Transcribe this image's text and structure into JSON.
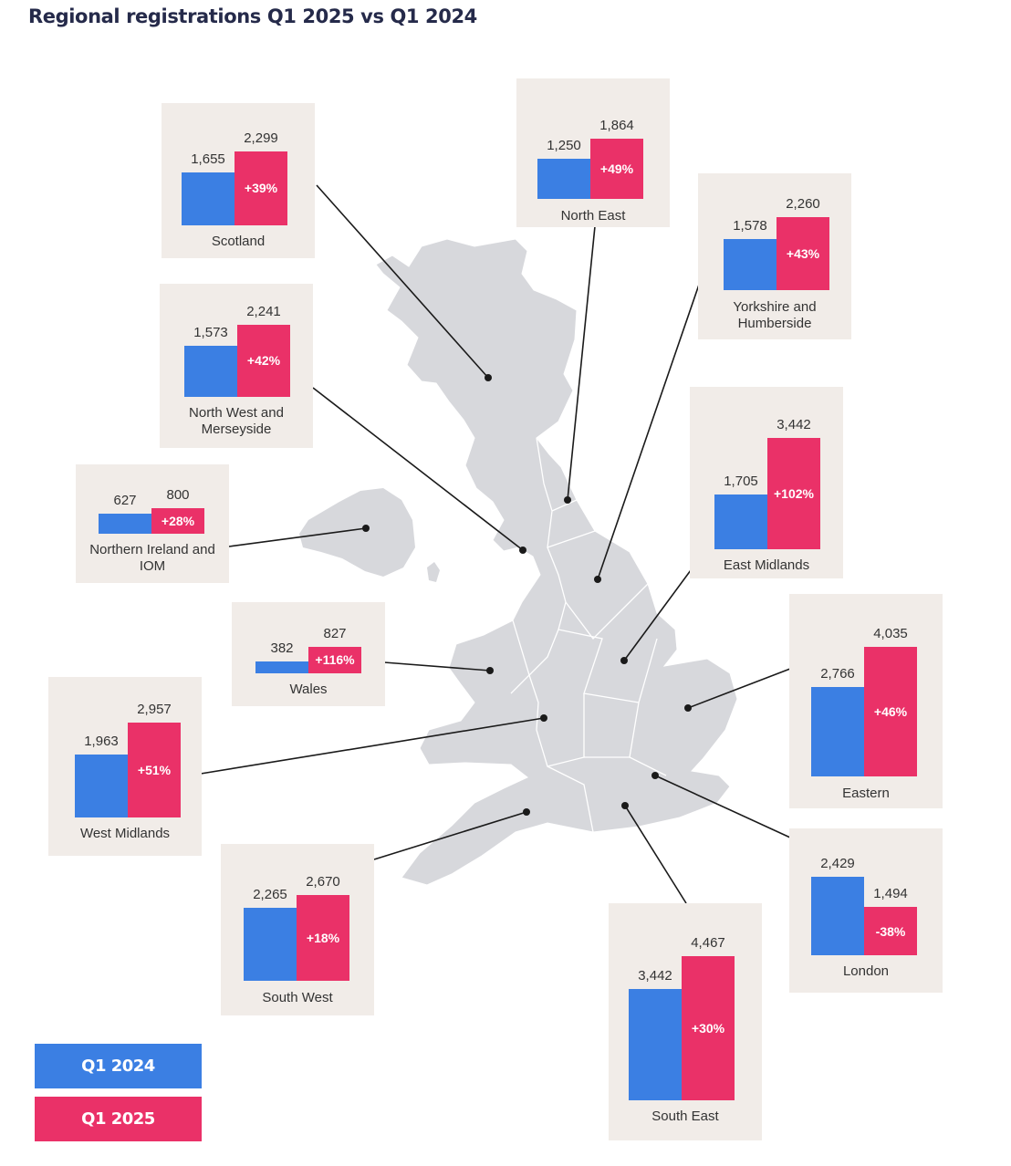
{
  "chart_data": {
    "type": "bar",
    "title": "Regional registrations Q1 2025 vs Q1 2024",
    "legend": [
      {
        "name": "Q1 2024",
        "color": "#3b7fe3"
      },
      {
        "name": "Q1 2025",
        "color": "#ea3168"
      }
    ],
    "legend_position": "bottom-left",
    "regions": [
      {
        "name": "Scotland",
        "q1_2024": 1655,
        "q1_2024_label": "1,655",
        "q1_2025": 2299,
        "q1_2025_label": "2,299",
        "change": "+39%"
      },
      {
        "name": "North East",
        "q1_2024": 1250,
        "q1_2024_label": "1,250",
        "q1_2025": 1864,
        "q1_2025_label": "1,864",
        "change": "+49%"
      },
      {
        "name": "Yorkshire and Humberside",
        "q1_2024": 1578,
        "q1_2024_label": "1,578",
        "q1_2025": 2260,
        "q1_2025_label": "2,260",
        "change": "+43%"
      },
      {
        "name": "North West and Merseyside",
        "q1_2024": 1573,
        "q1_2024_label": "1,573",
        "q1_2025": 2241,
        "q1_2025_label": "2,241",
        "change": "+42%"
      },
      {
        "name": "East Midlands",
        "q1_2024": 1705,
        "q1_2024_label": "1,705",
        "q1_2025": 3442,
        "q1_2025_label": "3,442",
        "change": "+102%"
      },
      {
        "name": "Northern Ireland and IOM",
        "q1_2024": 627,
        "q1_2024_label": "627",
        "q1_2025": 800,
        "q1_2025_label": "800",
        "change": "+28%"
      },
      {
        "name": "Wales",
        "q1_2024": 382,
        "q1_2024_label": "382",
        "q1_2025": 827,
        "q1_2025_label": "827",
        "change": "+116%"
      },
      {
        "name": "Eastern",
        "q1_2024": 2766,
        "q1_2024_label": "2,766",
        "q1_2025": 4035,
        "q1_2025_label": "4,035",
        "change": "+46%"
      },
      {
        "name": "West Midlands",
        "q1_2024": 1963,
        "q1_2024_label": "1,963",
        "q1_2025": 2957,
        "q1_2025_label": "2,957",
        "change": "+51%"
      },
      {
        "name": "London",
        "q1_2024": 2429,
        "q1_2024_label": "2,429",
        "q1_2025": 1494,
        "q1_2025_label": "1,494",
        "change": "-38%"
      },
      {
        "name": "South West",
        "q1_2024": 2265,
        "q1_2024_label": "2,265",
        "q1_2025": 2670,
        "q1_2025_label": "2,670",
        "change": "+18%"
      },
      {
        "name": "South East",
        "q1_2024": 3442,
        "q1_2024_label": "3,442",
        "q1_2025": 4467,
        "q1_2025_label": "4,467",
        "change": "+30%"
      }
    ]
  }
}
